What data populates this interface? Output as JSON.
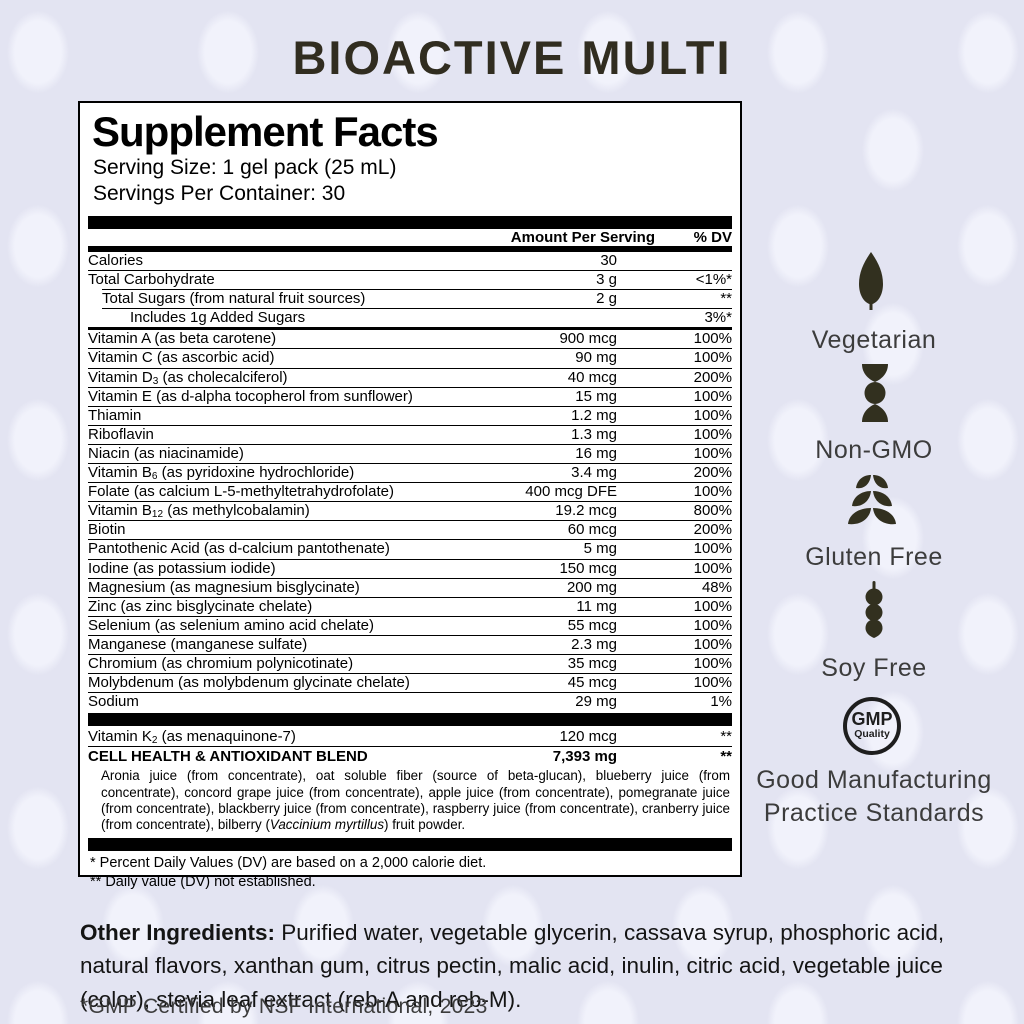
{
  "title": "BIOACTIVE MULTI",
  "colors": {
    "background": "#e3e4f2",
    "background_dot": "#f1f2fb",
    "title_text": "#312d20",
    "icon": "#32301f",
    "badge_text": "#3c3c3c",
    "panel_border": "#000000"
  },
  "panel": {
    "heading": "Supplement Facts",
    "serving_size": "Serving Size: 1 gel pack (25 mL)",
    "servings_per_container": "Servings Per Container: 30",
    "columns": [
      "Amount Per Serving",
      "% DV"
    ],
    "rows": [
      {
        "label": "Calories",
        "amount": "30",
        "dv": "",
        "indent": 0,
        "bold": false,
        "sep": "none"
      },
      {
        "label": "Total Carbohydrate",
        "amount": "3 g",
        "dv": "<1%*",
        "indent": 0,
        "bold": false,
        "sep": "line"
      },
      {
        "label": "Total Sugars (from natural fruit sources)",
        "amount": "2 g",
        "dv": "**",
        "indent": 1,
        "bold": false,
        "sep": "line-indent"
      },
      {
        "label": "Includes 1g Added Sugars",
        "amount": "",
        "dv": "3%*",
        "indent": 2,
        "bold": false,
        "sep": "line-indent"
      },
      {
        "label": "Vitamin A (as beta carotene)",
        "amount": "900 mcg",
        "dv": "100%",
        "indent": 0,
        "bold": false,
        "sep": "thick"
      },
      {
        "label": "Vitamin C (as ascorbic acid)",
        "amount": "90 mg",
        "dv": "100%",
        "indent": 0,
        "bold": false,
        "sep": "line"
      },
      {
        "label": "Vitamin D|3| (as cholecalciferol)",
        "amount": "40 mcg",
        "dv": "200%",
        "indent": 0,
        "bold": false,
        "sep": "line"
      },
      {
        "label": "Vitamin E (as d-alpha tocopherol from sunflower)",
        "amount": "15 mg",
        "dv": "100%",
        "indent": 0,
        "bold": false,
        "sep": "line"
      },
      {
        "label": "Thiamin",
        "amount": "1.2 mg",
        "dv": "100%",
        "indent": 0,
        "bold": false,
        "sep": "line"
      },
      {
        "label": "Riboflavin",
        "amount": "1.3 mg",
        "dv": "100%",
        "indent": 0,
        "bold": false,
        "sep": "line"
      },
      {
        "label": "Niacin (as niacinamide)",
        "amount": "16 mg",
        "dv": "100%",
        "indent": 0,
        "bold": false,
        "sep": "line"
      },
      {
        "label": "Vitamin B|6| (as pyridoxine hydrochloride)",
        "amount": "3.4 mg",
        "dv": "200%",
        "indent": 0,
        "bold": false,
        "sep": "line"
      },
      {
        "label": "Folate (as calcium L-5-methyltetrahydrofolate)",
        "amount": "400 mcg DFE",
        "dv": "100%",
        "indent": 0,
        "bold": false,
        "sep": "line"
      },
      {
        "label": "Vitamin B|12| (as methylcobalamin)",
        "amount": "19.2 mcg",
        "dv": "800%",
        "indent": 0,
        "bold": false,
        "sep": "line"
      },
      {
        "label": "Biotin",
        "amount": "60 mcg",
        "dv": "200%",
        "indent": 0,
        "bold": false,
        "sep": "line"
      },
      {
        "label": "Pantothenic Acid (as d-calcium pantothenate)",
        "amount": "5 mg",
        "dv": "100%",
        "indent": 0,
        "bold": false,
        "sep": "line"
      },
      {
        "label": "Iodine (as potassium iodide)",
        "amount": "150 mcg",
        "dv": "100%",
        "indent": 0,
        "bold": false,
        "sep": "line"
      },
      {
        "label": "Magnesium (as magnesium bisglycinate)",
        "amount": "200 mg",
        "dv": "48%",
        "indent": 0,
        "bold": false,
        "sep": "line"
      },
      {
        "label": "Zinc (as zinc bisglycinate chelate)",
        "amount": "11 mg",
        "dv": "100%",
        "indent": 0,
        "bold": false,
        "sep": "line"
      },
      {
        "label": "Selenium (as selenium amino acid chelate)",
        "amount": "55 mcg",
        "dv": "100%",
        "indent": 0,
        "bold": false,
        "sep": "line"
      },
      {
        "label": "Manganese (manganese sulfate)",
        "amount": "2.3 mg",
        "dv": "100%",
        "indent": 0,
        "bold": false,
        "sep": "line"
      },
      {
        "label": "Chromium (as chromium polynicotinate)",
        "amount": "35 mcg",
        "dv": "100%",
        "indent": 0,
        "bold": false,
        "sep": "line"
      },
      {
        "label": "Molybdenum (as molybdenum glycinate chelate)",
        "amount": "45 mcg",
        "dv": "100%",
        "indent": 0,
        "bold": false,
        "sep": "line"
      },
      {
        "label": "Sodium",
        "amount": "29 mg",
        "dv": "1%",
        "indent": 0,
        "bold": false,
        "sep": "line"
      },
      {
        "label": "Vitamin K|2| (as menaquinone-7)",
        "amount": "120 mcg",
        "dv": "**",
        "indent": 0,
        "bold": false,
        "sep": "bar"
      },
      {
        "label": "CELL HEALTH & ANTIOXIDANT BLEND",
        "amount": "7,393 mg",
        "dv": "**",
        "indent": 0,
        "bold": true,
        "sep": "line"
      }
    ],
    "blend_description": "Aronia juice (from concentrate), oat soluble fiber (source of beta-glucan), blueberry juice (from concentrate), concord grape juice (from concentrate), apple juice (from concentrate), pomegranate juice (from concentrate), blackberry juice (from concentrate), raspberry juice (from concentrate), cranberry juice (from concentrate), bilberry (~Vaccinium myrtillus~) fruit powder.",
    "footnotes": [
      "* Percent Daily Values (DV) are based on a 2,000 calorie diet.",
      "** Daily value (DV) not established."
    ]
  },
  "badges": [
    {
      "icon": "leaf-icon",
      "label": "Vegetarian"
    },
    {
      "icon": "dna-icon",
      "label": "Non-GMO"
    },
    {
      "icon": "wheat-icon",
      "label": "Gluten Free"
    },
    {
      "icon": "soybean-icon",
      "label": "Soy Free"
    },
    {
      "icon": "gmp-seal-icon",
      "seal_text_top": "GMP",
      "seal_text_bottom": "Quality",
      "label": "Good Manufacturing Practice Standards"
    }
  ],
  "other_ingredients": {
    "heading": "Other Ingredients:",
    "text": " Purified water, vegetable glycerin, cassava syrup, phosphoric acid, natural flavors, xanthan gum, citrus pectin, malic acid, inulin, citric acid, vegetable juice (color), stevia leaf extract (reb-A and reb-M)."
  },
  "certification_note": "*GMP Certified by NSF International, 2023"
}
